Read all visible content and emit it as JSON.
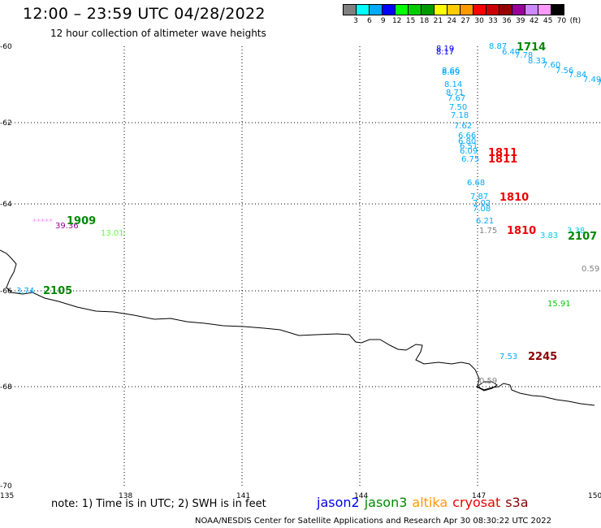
{
  "header": {
    "title": "12:00 – 23:59 UTC 04/28/2022",
    "subtitle": "12 hour collection of altimeter wave heights"
  },
  "scale": {
    "labels": [
      "3",
      "6",
      "9",
      "12",
      "15",
      "18",
      "21",
      "24",
      "27",
      "30",
      "33",
      "36",
      "39",
      "42",
      "45",
      "70"
    ],
    "unit": "(ft)",
    "colors": [
      "#808080",
      "#00ffff",
      "#00aaff",
      "#0000ff",
      "#00ff00",
      "#00cc00",
      "#009900",
      "#ffff00",
      "#ffcc00",
      "#ff9900",
      "#ff0000",
      "#cc0000",
      "#990000",
      "#990099",
      "#cc88ff",
      "#ff99ff",
      "#000000"
    ]
  },
  "axes": {
    "lat_labels": [
      "-60",
      "-62",
      "-64",
      "-66",
      "-68",
      "-70"
    ],
    "lon_labels": [
      "135",
      "138",
      "141",
      "144",
      "147",
      "150"
    ]
  },
  "observations": [
    {
      "text": "8.19",
      "color": "#0000ff"
    },
    {
      "text": "8.17",
      "color": "#0000ff"
    },
    {
      "text": "8.87",
      "color": "#00aaff"
    },
    {
      "text": "6.40",
      "color": "#00aaff"
    },
    {
      "text": "7.78",
      "color": "#00aaff"
    },
    {
      "text": "8.33",
      "color": "#00aaff"
    },
    {
      "text": "7.60",
      "color": "#00aaff"
    },
    {
      "text": "7.56",
      "color": "#00aaff"
    },
    {
      "text": "7.84",
      "color": "#00aaff"
    },
    {
      "text": "7.49",
      "color": "#00aaff"
    },
    {
      "text": "7",
      "color": "#00aaff"
    },
    {
      "text": "8.66",
      "color": "#00aaff"
    },
    {
      "text": "8.69",
      "color": "#00aaff"
    },
    {
      "text": "8.14",
      "color": "#00aaff"
    },
    {
      "text": "8.71",
      "color": "#00aaff"
    },
    {
      "text": "7.67",
      "color": "#00aaff"
    },
    {
      "text": "7.50",
      "color": "#00aaff"
    },
    {
      "text": "7.18",
      "color": "#00aaff"
    },
    {
      "text": "7.62",
      "color": "#00aaff"
    },
    {
      "text": "6.66",
      "color": "#00aaff"
    },
    {
      "text": "6.80",
      "color": "#00aaff"
    },
    {
      "text": "6.51",
      "color": "#00aaff"
    },
    {
      "text": "6.09",
      "color": "#00aaff"
    },
    {
      "text": "6.75",
      "color": "#00aaff"
    },
    {
      "text": "6.68",
      "color": "#00aaff"
    },
    {
      "text": "7.87",
      "color": "#00aaff"
    },
    {
      "text": "7.02",
      "color": "#00aaff"
    },
    {
      "text": "7.08",
      "color": "#00aaff"
    },
    {
      "text": "6.21",
      "color": "#00aaff"
    },
    {
      "text": "1.75",
      "color": "#808080"
    },
    {
      "text": "3.83",
      "color": "#00ccee"
    },
    {
      "text": "3.38",
      "color": "#00ccee"
    },
    {
      "text": "0.59",
      "color": "#808080"
    },
    {
      "text": "15.91",
      "color": "#00cc00"
    },
    {
      "text": "7.53",
      "color": "#00aaff"
    },
    {
      "text": "0.59",
      "color": "#808080"
    },
    {
      "text": "*****",
      "color": "#ff99ff"
    },
    {
      "text": "39.36",
      "color": "#990099"
    },
    {
      "text": "13.01",
      "color": "#66ff44"
    },
    {
      "text": "3.74",
      "color": "#00aaff"
    }
  ],
  "pass_times": [
    {
      "text": "1714",
      "color": "#008800"
    },
    {
      "text": "1811",
      "color": "#ee0000"
    },
    {
      "text": "1811",
      "color": "#ee0000"
    },
    {
      "text": "1810",
      "color": "#ee0000"
    },
    {
      "text": "1810",
      "color": "#ee0000"
    },
    {
      "text": "2107",
      "color": "#008800"
    },
    {
      "text": "2245",
      "color": "#880000"
    },
    {
      "text": "1909",
      "color": "#008800"
    },
    {
      "text": "2105",
      "color": "#008800"
    }
  ],
  "footer": {
    "note": "note: 1) Time is in UTC; 2) SWH is in feet",
    "credit": "NOAA/NESDIS Center for Satellite Applications and Research   Apr 30 08:30:22 UTC 2022",
    "satellites": [
      {
        "name": "jason2",
        "color": "#0000ee"
      },
      {
        "name": "jason3",
        "color": "#008800"
      },
      {
        "name": "altika",
        "color": "#ff9900"
      },
      {
        "name": "cryosat",
        "color": "#ee0000"
      },
      {
        "name": "s3a",
        "color": "#880000"
      }
    ]
  }
}
